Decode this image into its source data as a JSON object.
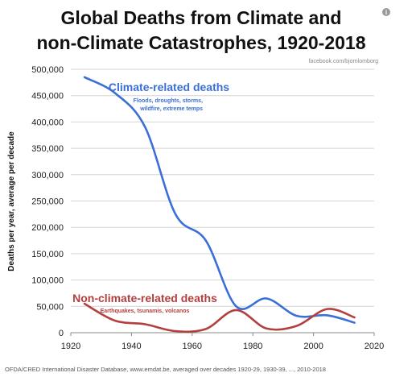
{
  "header": {
    "title_line1": "Global Deaths from Climate and",
    "title_line2": "non-Climate Catastrophes, 1920-2018",
    "attribution": "facebook.com/bjornlomborg",
    "info_icon": "info-icon"
  },
  "footer": {
    "source": "OFDA/CRED International Disaster Database, www.emdat.be, averaged over decades 1920-29, 1930-39, ..., 2010-2018"
  },
  "chart_data": {
    "type": "line",
    "ylabel": "Deaths per year, average per decade",
    "xlim": [
      1920,
      2020
    ],
    "ylim": [
      0,
      500000
    ],
    "x_ticks": [
      1920,
      1940,
      1960,
      1980,
      2000,
      2020
    ],
    "y_ticks": [
      0,
      50000,
      100000,
      150000,
      200000,
      250000,
      300000,
      350000,
      400000,
      450000,
      500000
    ],
    "y_tick_labels": [
      "0",
      "50,000",
      "100,000",
      "150,000",
      "200,000",
      "250,000",
      "300,000",
      "350,000",
      "400,000",
      "450,000",
      "500,000"
    ],
    "grid": "horizontal",
    "series": [
      {
        "name": "Climate-related deaths",
        "annotation": "Floods, droughts, storms, wildfire, extreme temps",
        "annotation_lines": [
          "Floods, droughts, storms,",
          "wildfire, extreme temps"
        ],
        "color": "#3a6fd8",
        "x": [
          1924.5,
          1934.5,
          1944.5,
          1954.5,
          1964.5,
          1974.5,
          1984.5,
          1994.5,
          2004.5,
          2013.5
        ],
        "y": [
          485000,
          455000,
          390000,
          225000,
          175000,
          50000,
          65000,
          32000,
          33000,
          19000
        ]
      },
      {
        "name": "Non-climate-related deaths",
        "annotation": "Earthquakes, tsunamis, volcanos",
        "annotation_lines": [
          "Earthquakes, tsunamis, volcanos"
        ],
        "color": "#b3403d",
        "x": [
          1924.5,
          1934.5,
          1944.5,
          1954.5,
          1964.5,
          1974.5,
          1984.5,
          1994.5,
          2004.5,
          2013.5
        ],
        "y": [
          55000,
          23000,
          16000,
          3000,
          7000,
          43000,
          8000,
          13000,
          45000,
          29000
        ]
      }
    ]
  }
}
